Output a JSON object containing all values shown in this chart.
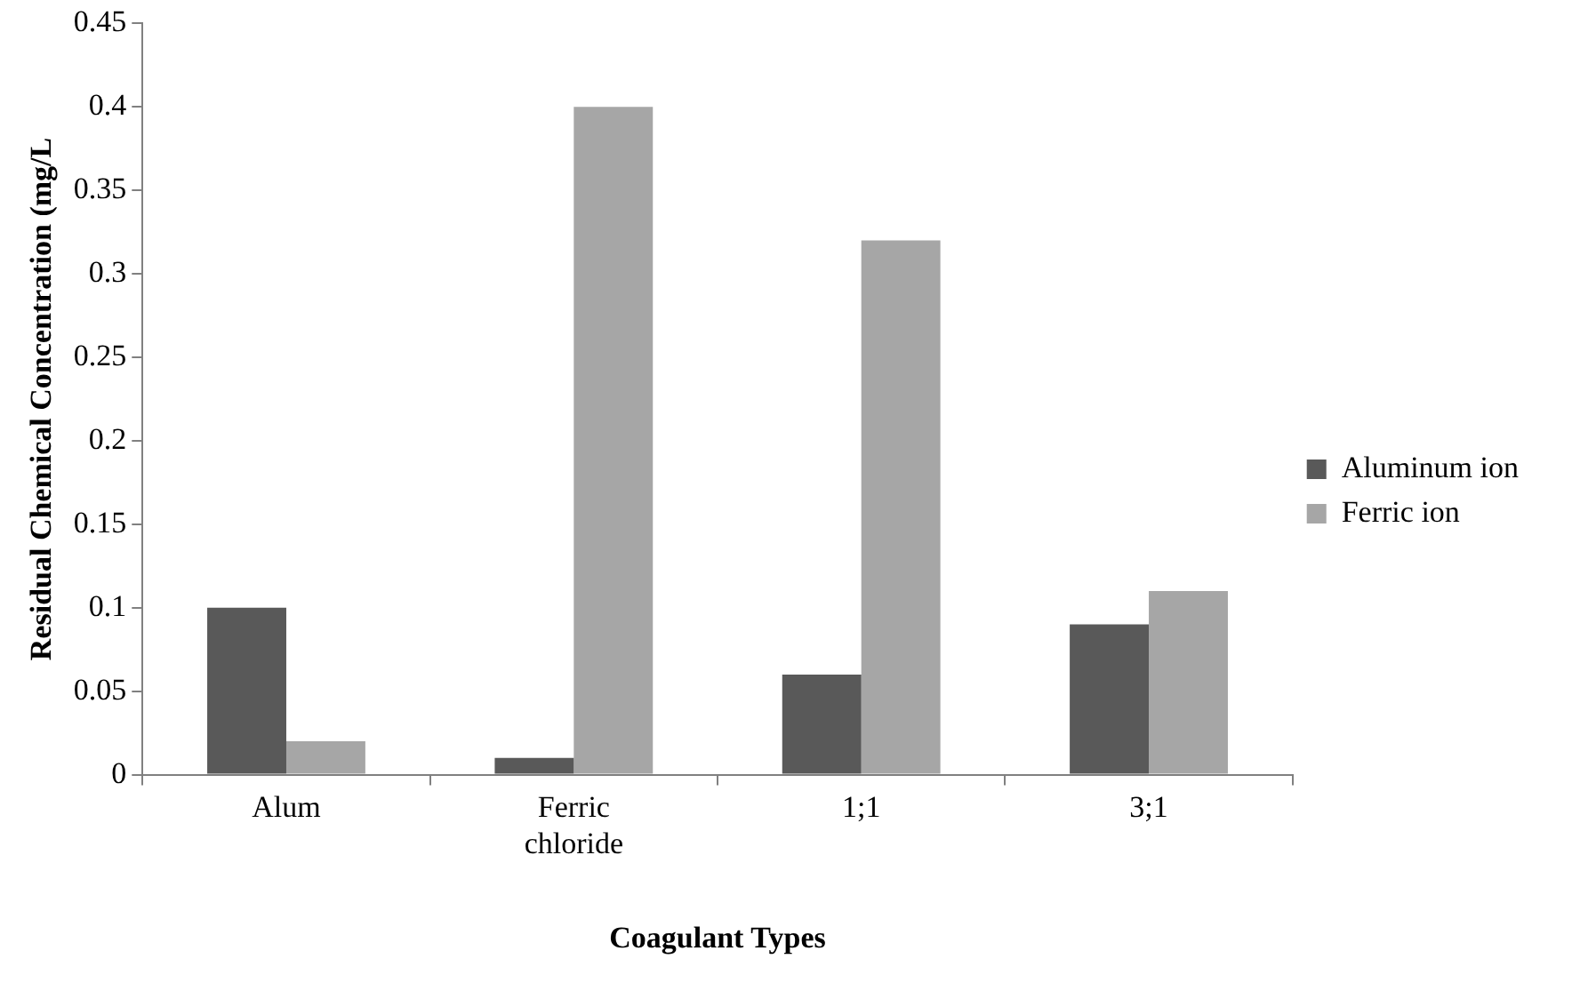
{
  "chart_data": {
    "type": "bar",
    "xlabel": "Coagulant Types",
    "ylabel": "Residual Chemical Concentration (mg/L",
    "categories": [
      "Alum",
      "Ferric chloride",
      "1;1",
      "3;1"
    ],
    "series": [
      {
        "name": "Aluminum ion",
        "color": "#595959",
        "values": [
          0.1,
          0.01,
          0.06,
          0.09
        ]
      },
      {
        "name": "Ferric ion",
        "color": "#a6a6a6",
        "values": [
          0.02,
          0.4,
          0.32,
          0.11
        ]
      }
    ],
    "ylim": [
      0,
      0.45
    ],
    "yticks": [
      0,
      0.05,
      0.1,
      0.15,
      0.2,
      0.25,
      0.3,
      0.35,
      0.4,
      0.45
    ],
    "grid": false,
    "legend": "right"
  }
}
